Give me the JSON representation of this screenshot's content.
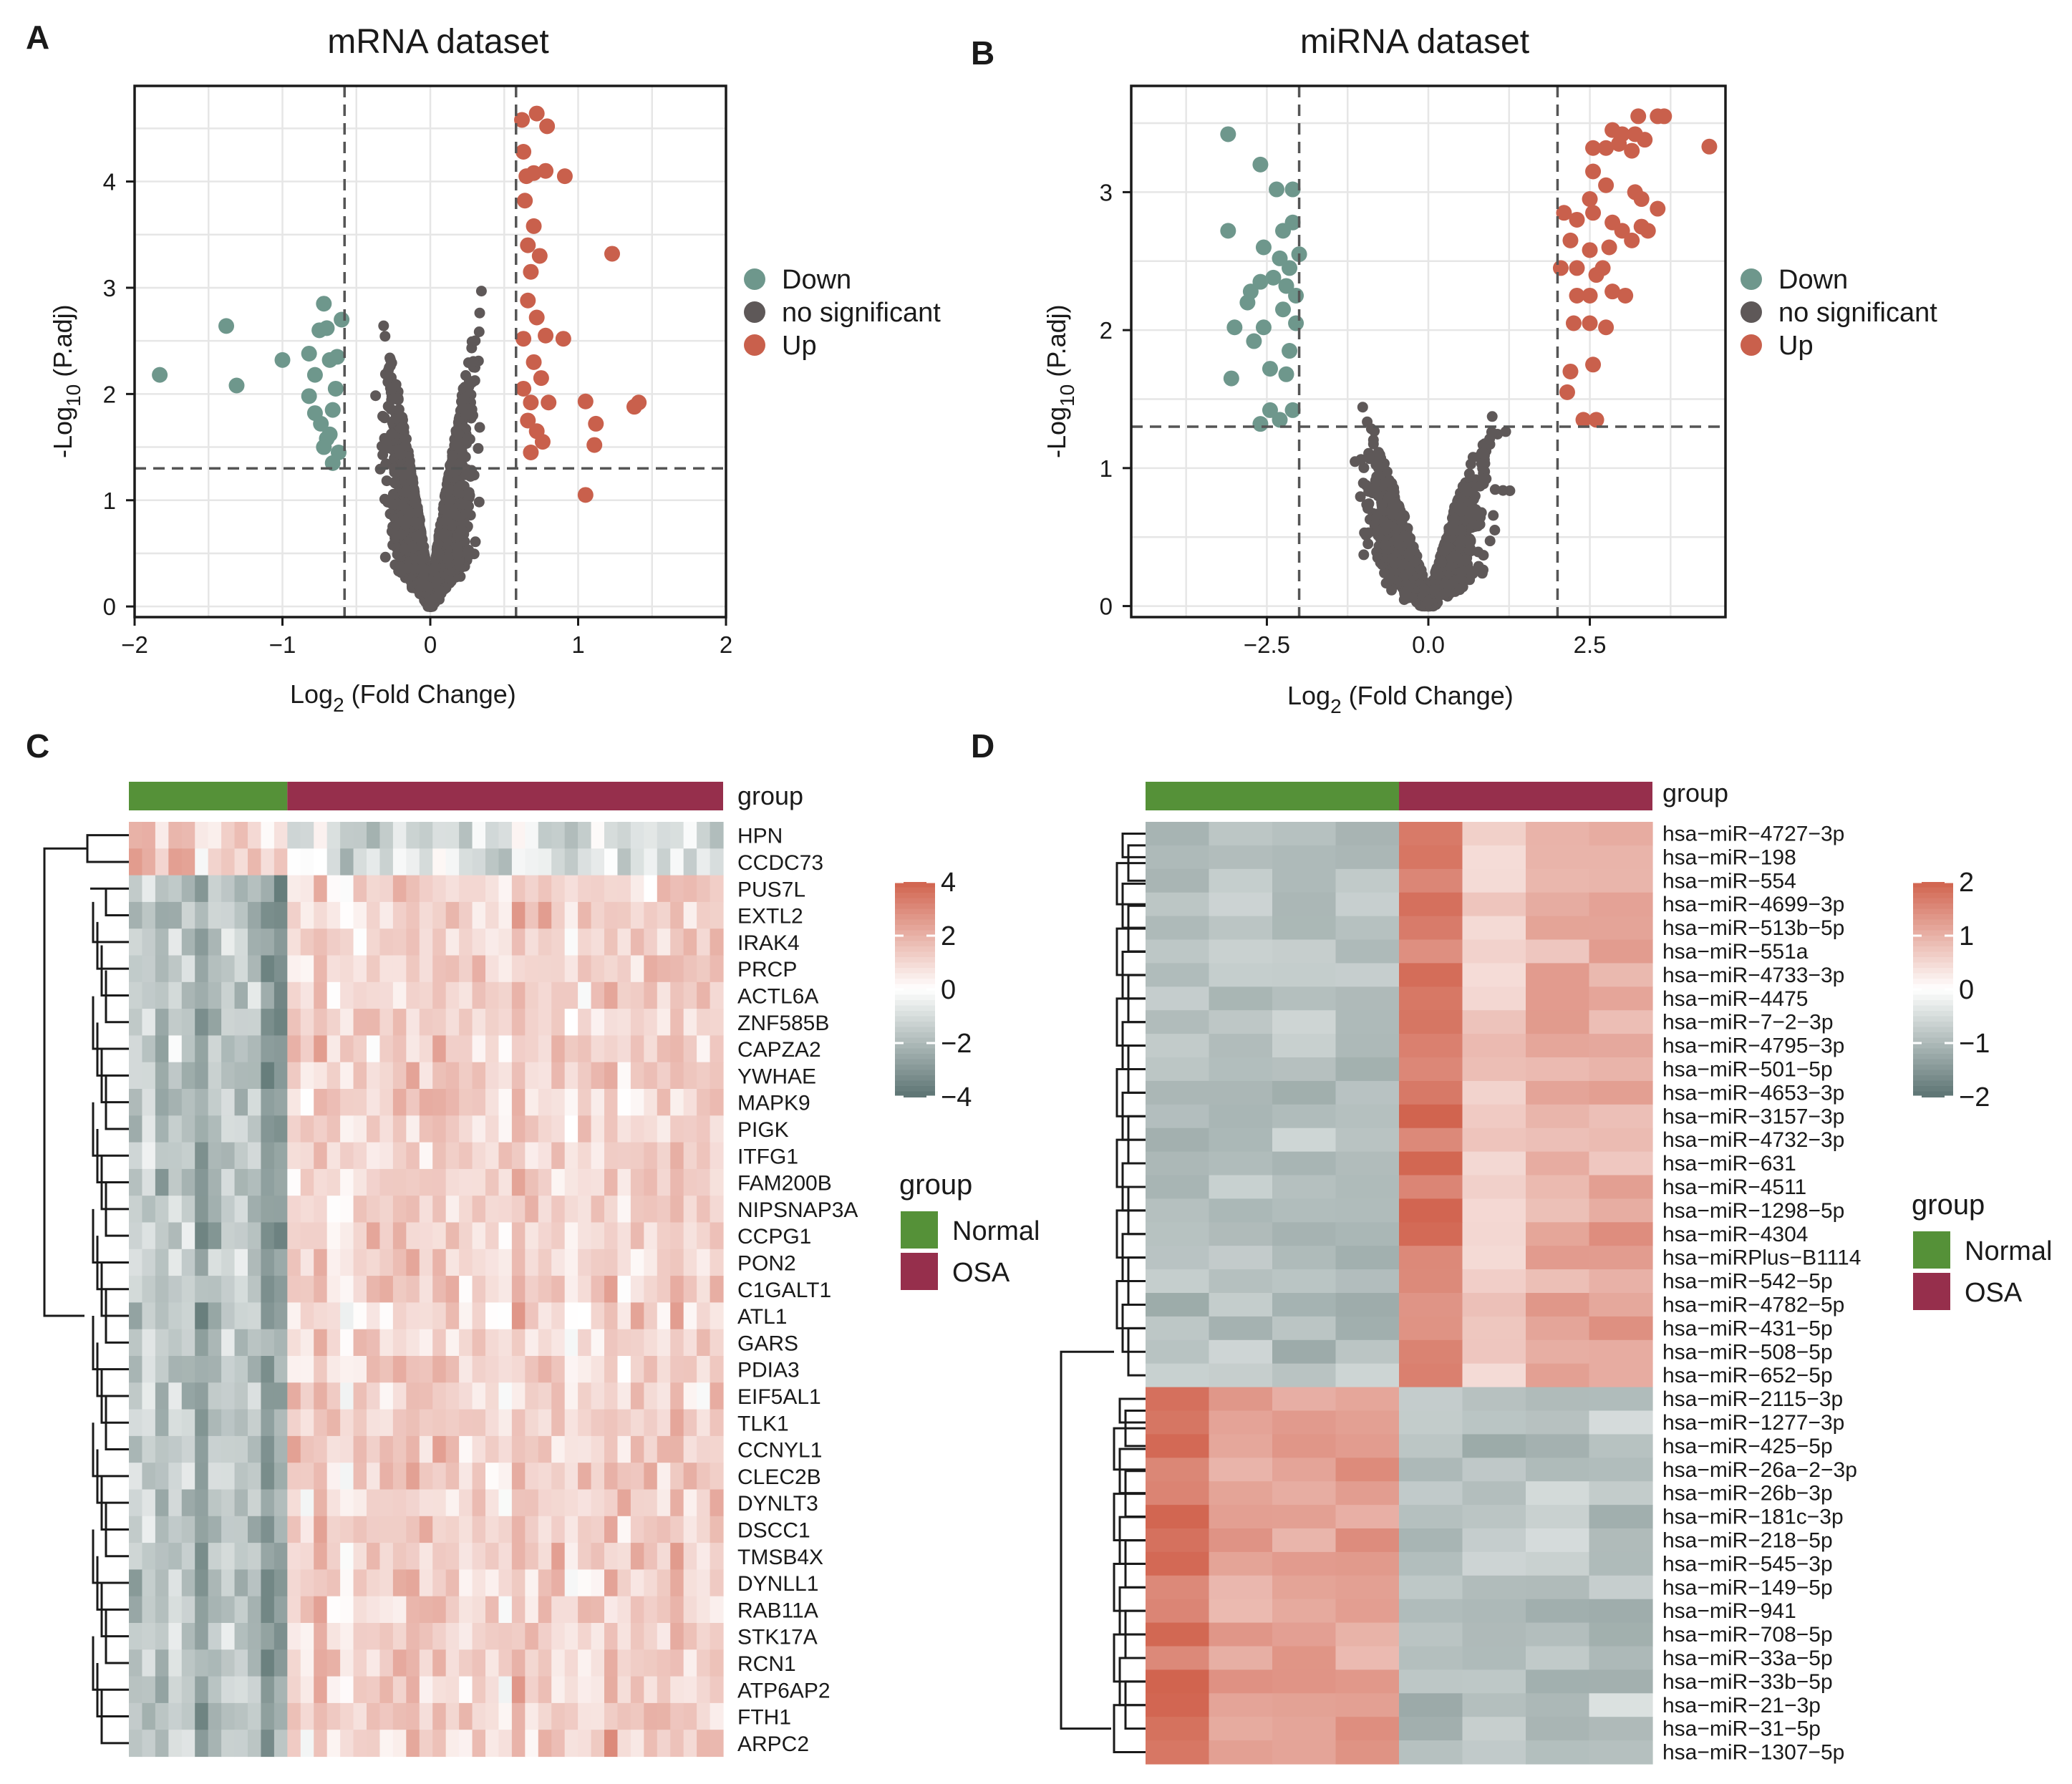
{
  "chart_data": [
    {
      "panel": "A",
      "type": "scatter",
      "title": "mRNA dataset",
      "xlabel": {
        "main": "Log",
        "sub": "2",
        "rest": "(Fold  Change)"
      },
      "ylabel": {
        "main": "-Log",
        "sub": "10",
        "rest": "(P.adj)"
      },
      "xlim": [
        -2,
        2
      ],
      "ylim": [
        -0.1,
        4.9
      ],
      "xticks": [
        -2,
        -1,
        0,
        1,
        2
      ],
      "xtick_labels": [
        "−2",
        "−1",
        "0",
        "1",
        "2"
      ],
      "yticks": [
        0,
        1,
        2,
        3,
        4
      ],
      "ytick_labels": [
        "0",
        "1",
        "2",
        "3",
        "4"
      ],
      "thresholds": {
        "x": [
          -0.58,
          0.58
        ],
        "y": 1.3
      },
      "legend": [
        {
          "label": "Down",
          "color": "#6e978c"
        },
        {
          "label": "no significant",
          "color": "#5e5858"
        },
        {
          "label": "Up",
          "color": "#c9604c"
        }
      ],
      "down_points": [
        [
          -1.83,
          2.18
        ],
        [
          -1.38,
          2.64
        ],
        [
          -1.31,
          2.08
        ],
        [
          -1.0,
          2.32
        ],
        [
          -0.82,
          2.38
        ],
        [
          -0.78,
          2.18
        ],
        [
          -0.75,
          2.6
        ],
        [
          -0.72,
          2.85
        ],
        [
          -0.7,
          2.62
        ],
        [
          -0.68,
          2.32
        ],
        [
          -0.82,
          1.98
        ],
        [
          -0.74,
          1.72
        ],
        [
          -0.7,
          1.58
        ],
        [
          -0.66,
          1.85
        ],
        [
          -0.64,
          2.05
        ],
        [
          -0.62,
          1.45
        ],
        [
          -0.68,
          1.62
        ],
        [
          -0.78,
          1.82
        ],
        [
          -0.6,
          2.7
        ],
        [
          -0.63,
          2.35
        ],
        [
          -0.66,
          1.35
        ],
        [
          -0.72,
          1.5
        ]
      ],
      "up_points": [
        [
          0.62,
          4.58
        ],
        [
          0.72,
          4.64
        ],
        [
          0.79,
          4.52
        ],
        [
          0.63,
          4.28
        ],
        [
          0.65,
          4.05
        ],
        [
          0.7,
          4.08
        ],
        [
          0.78,
          4.1
        ],
        [
          0.91,
          4.05
        ],
        [
          0.64,
          3.82
        ],
        [
          0.7,
          3.58
        ],
        [
          0.66,
          3.4
        ],
        [
          0.74,
          3.3
        ],
        [
          0.68,
          3.15
        ],
        [
          1.23,
          3.32
        ],
        [
          0.66,
          2.88
        ],
        [
          0.72,
          2.72
        ],
        [
          0.63,
          2.52
        ],
        [
          0.78,
          2.55
        ],
        [
          0.9,
          2.52
        ],
        [
          0.7,
          2.3
        ],
        [
          0.75,
          2.15
        ],
        [
          0.68,
          1.92
        ],
        [
          0.8,
          1.92
        ],
        [
          1.05,
          1.93
        ],
        [
          1.12,
          1.72
        ],
        [
          1.38,
          1.88
        ],
        [
          1.41,
          1.92
        ],
        [
          1.11,
          1.52
        ],
        [
          0.72,
          1.65
        ],
        [
          0.68,
          1.45
        ],
        [
          0.76,
          1.55
        ],
        [
          1.05,
          1.05
        ],
        [
          0.66,
          1.75
        ],
        [
          0.63,
          2.05
        ]
      ],
      "ns_generation": {
        "count": 2600,
        "xmax": 0.58,
        "ymax": 4.6
      }
    },
    {
      "panel": "B",
      "type": "scatter",
      "title": "miRNA dataset",
      "xlabel": {
        "main": "Log",
        "sub": "2",
        "rest": "(Fold  Change)"
      },
      "ylabel": {
        "main": "-Log",
        "sub": "10",
        "rest": "(P.adj)"
      },
      "xlim": [
        -4.6,
        4.6
      ],
      "ylim": [
        -0.08,
        3.77
      ],
      "xticks": [
        -2.5,
        0.0,
        2.5
      ],
      "xtick_labels": [
        "−2.5",
        "0.0",
        "2.5"
      ],
      "yticks": [
        0,
        1,
        2,
        3
      ],
      "ytick_labels": [
        "0",
        "1",
        "2",
        "3"
      ],
      "thresholds": {
        "x": [
          -2,
          2
        ],
        "y": 1.3
      },
      "legend": [
        {
          "label": "Down",
          "color": "#6e978c"
        },
        {
          "label": "no significant",
          "color": "#5e5858"
        },
        {
          "label": "Up",
          "color": "#c9604c"
        }
      ],
      "down_points": [
        [
          -3.1,
          3.42
        ],
        [
          -2.6,
          3.2
        ],
        [
          -3.1,
          2.72
        ],
        [
          -2.35,
          3.02
        ],
        [
          -2.1,
          3.02
        ],
        [
          -2.1,
          2.78
        ],
        [
          -2.55,
          2.6
        ],
        [
          -2.3,
          2.52
        ],
        [
          -2.25,
          2.72
        ],
        [
          -2.0,
          2.55
        ],
        [
          -2.15,
          2.45
        ],
        [
          -2.4,
          2.38
        ],
        [
          -2.6,
          2.35
        ],
        [
          -2.75,
          2.28
        ],
        [
          -2.05,
          2.25
        ],
        [
          -2.25,
          2.15
        ],
        [
          -2.8,
          2.2
        ],
        [
          -3.0,
          2.02
        ],
        [
          -2.55,
          2.02
        ],
        [
          -2.7,
          1.92
        ],
        [
          -2.15,
          1.85
        ],
        [
          -2.45,
          1.72
        ],
        [
          -3.05,
          1.65
        ],
        [
          -2.2,
          1.68
        ],
        [
          -2.1,
          1.42
        ],
        [
          -2.45,
          1.42
        ],
        [
          -2.6,
          1.32
        ],
        [
          -2.3,
          1.35
        ],
        [
          -2.05,
          2.05
        ],
        [
          -2.2,
          2.32
        ]
      ],
      "up_points": [
        [
          3.25,
          3.55
        ],
        [
          3.55,
          3.55
        ],
        [
          3.65,
          3.55
        ],
        [
          2.85,
          3.45
        ],
        [
          3.0,
          3.42
        ],
        [
          3.2,
          3.42
        ],
        [
          3.35,
          3.38
        ],
        [
          4.35,
          3.33
        ],
        [
          2.55,
          3.32
        ],
        [
          2.75,
          3.32
        ],
        [
          2.95,
          3.35
        ],
        [
          3.15,
          3.3
        ],
        [
          2.55,
          3.15
        ],
        [
          2.75,
          3.05
        ],
        [
          3.2,
          3.0
        ],
        [
          2.5,
          2.95
        ],
        [
          3.3,
          2.95
        ],
        [
          3.55,
          2.88
        ],
        [
          2.3,
          2.8
        ],
        [
          2.55,
          2.85
        ],
        [
          2.85,
          2.78
        ],
        [
          3.0,
          2.72
        ],
        [
          3.3,
          2.75
        ],
        [
          2.2,
          2.65
        ],
        [
          2.5,
          2.58
        ],
        [
          2.8,
          2.6
        ],
        [
          3.15,
          2.65
        ],
        [
          3.4,
          2.72
        ],
        [
          2.3,
          2.45
        ],
        [
          2.6,
          2.4
        ],
        [
          2.05,
          2.45
        ],
        [
          2.3,
          2.25
        ],
        [
          2.5,
          2.25
        ],
        [
          2.85,
          2.28
        ],
        [
          3.05,
          2.25
        ],
        [
          2.25,
          2.05
        ],
        [
          2.5,
          2.05
        ],
        [
          2.75,
          2.02
        ],
        [
          2.2,
          1.7
        ],
        [
          2.55,
          1.75
        ],
        [
          2.4,
          1.35
        ],
        [
          2.6,
          1.35
        ],
        [
          2.15,
          1.55
        ],
        [
          2.1,
          2.85
        ],
        [
          2.7,
          2.45
        ]
      ],
      "ns_generation": {
        "count": 1400,
        "xmax": 2.0,
        "ymax": 2.6
      }
    },
    {
      "panel": "C",
      "type": "heatmap",
      "group_title": "group",
      "groups": [
        {
          "label": "Normal",
          "color": "#559138",
          "count": 12
        },
        {
          "label": "OSA",
          "color": "#962f4c",
          "count": 33
        }
      ],
      "color_scale": {
        "min": -4,
        "max": 4,
        "ticks": [
          "4",
          "2",
          "0",
          "−2",
          "−4"
        ],
        "low": "#5c7472",
        "mid": "#ffffff",
        "high": "#d1634e"
      },
      "rows": [
        "HPN",
        "CCDC73",
        "PUS7L",
        "EXTL2",
        "IRAK4",
        "PRCP",
        "ACTL6A",
        "ZNF585B",
        "CAPZA2",
        "YWHAE",
        "MAPK9",
        "PIGK",
        "ITFG1",
        "FAM200B",
        "NIPSNAP3A",
        "CCPG1",
        "PON2",
        "C1GALT1",
        "ATL1",
        "GARS",
        "PDIA3",
        "EIF5AL1",
        "TLK1",
        "CCNYL1",
        "CLEC2B",
        "DYNLT3",
        "DSCC1",
        "TMSB4X",
        "DYNLL1",
        "RAB11A",
        "STK17A",
        "RCN1",
        "ATP6AP2",
        "FTH1",
        "ARPC2"
      ],
      "pattern": {
        "normal_mean": -1.6,
        "osa_mean": 1.2,
        "inverted_rows": 2
      }
    },
    {
      "panel": "D",
      "type": "heatmap",
      "group_title": "group",
      "groups": [
        {
          "label": "Normal",
          "color": "#559138",
          "count": 4
        },
        {
          "label": "OSA",
          "color": "#962f4c",
          "count": 4
        }
      ],
      "color_scale": {
        "min": -2,
        "max": 2,
        "ticks": [
          "2",
          "1",
          "0",
          "−1",
          "−2"
        ],
        "low": "#5c7472",
        "mid": "#ffffff",
        "high": "#d1634e"
      },
      "rows": [
        "hsa−miR−4727−3p",
        "hsa−miR−198",
        "hsa−miR−554",
        "hsa−miR−4699−3p",
        "hsa−miR−513b−5p",
        "hsa−miR−551a",
        "hsa−miR−4733−3p",
        "hsa−miR−4475",
        "hsa−miR−7−2−3p",
        "hsa−miR−4795−3p",
        "hsa−miR−501−5p",
        "hsa−miR−4653−3p",
        "hsa−miR−3157−3p",
        "hsa−miR−4732−3p",
        "hsa−miR−631",
        "hsa−miR−4511",
        "hsa−miR−1298−5p",
        "hsa−miR−4304",
        "hsa−miRPlus−B1114",
        "hsa−miR−542−5p",
        "hsa−miR−4782−5p",
        "hsa−miR−431−5p",
        "hsa−miR−508−5p",
        "hsa−miR−652−5p",
        "hsa−miR−2115−3p",
        "hsa−miR−1277−3p",
        "hsa−miR−425−5p",
        "hsa−miR−26a−2−3p",
        "hsa−miR−26b−3p",
        "hsa−miR−181c−3p",
        "hsa−miR−218−5p",
        "hsa−miR−545−3p",
        "hsa−miR−149−5p",
        "hsa−miR−941",
        "hsa−miR−708−5p",
        "hsa−miR−33a−5p",
        "hsa−miR−33b−5p",
        "hsa−miR−21−3p",
        "hsa−miR−31−5p",
        "hsa−miR−1307−5p"
      ],
      "pattern": {
        "up_rows": 24,
        "down_rows": 16
      }
    }
  ]
}
